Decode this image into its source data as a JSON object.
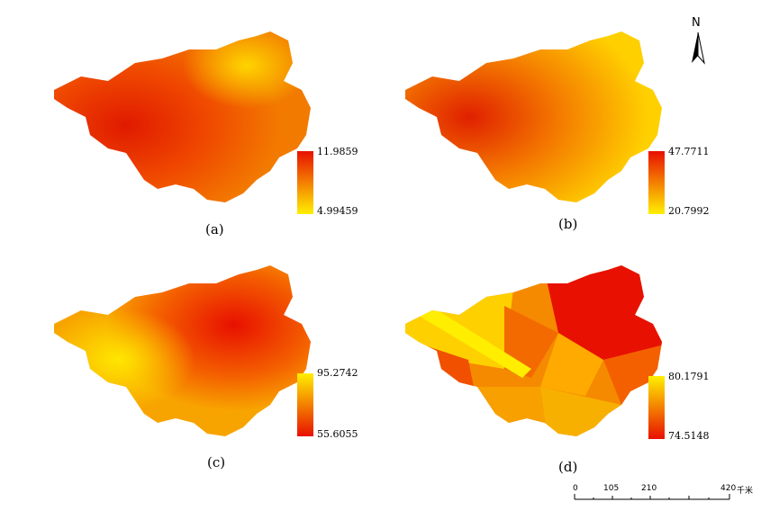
{
  "panels": [
    {
      "caption": "(a)",
      "legend_top": "11.9859",
      "legend_bottom": "4.99459",
      "legend_gradient": [
        "#e81000",
        "#ffef00"
      ]
    },
    {
      "caption": "(b)",
      "legend_top": "47.7711",
      "legend_bottom": "20.7992",
      "legend_gradient": [
        "#e81000",
        "#ffef00"
      ]
    },
    {
      "caption": "(c)",
      "legend_top": "95.2742",
      "legend_bottom": "55.6055",
      "legend_gradient": [
        "#ffef00",
        "#e81000"
      ]
    },
    {
      "caption": "(d)",
      "legend_top": "80.1791",
      "legend_bottom": "74.5148",
      "legend_gradient": [
        "#ffef00",
        "#e81000"
      ]
    }
  ],
  "north_arrow": {
    "label": "N"
  },
  "scale_bar": {
    "labels": [
      "0",
      "105",
      "210",
      "420"
    ],
    "unit": "千米"
  },
  "colors": {
    "high": "#e81000",
    "mid": "#f58a00",
    "low": "#ffef00"
  }
}
